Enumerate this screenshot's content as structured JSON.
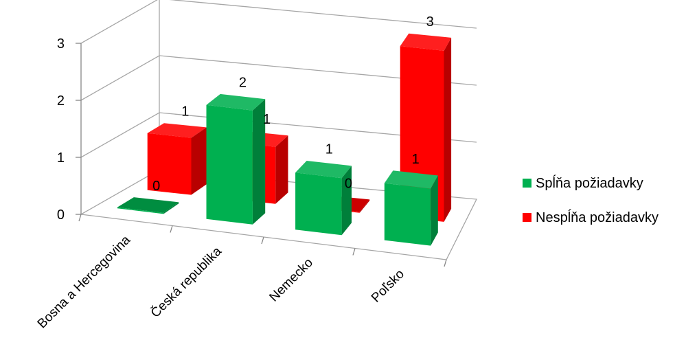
{
  "chart_data": {
    "type": "bar",
    "categories": [
      "Bosna a Hercegovina",
      "Česká republika",
      "Nemecko",
      "Poľsko"
    ],
    "series": [
      {
        "name": "Spĺňa požiadavky",
        "values": [
          0,
          2,
          1,
          1
        ],
        "color": "#00B050"
      },
      {
        "name": "Nespĺňa požiadavky",
        "values": [
          1,
          1,
          0,
          3
        ],
        "color": "#FF0000"
      }
    ],
    "yticks": [
      "0",
      "1",
      "2",
      "3"
    ],
    "ylim": [
      0,
      3
    ],
    "grid": true,
    "legend_position": "right",
    "style": "3d-clustered-depth"
  }
}
